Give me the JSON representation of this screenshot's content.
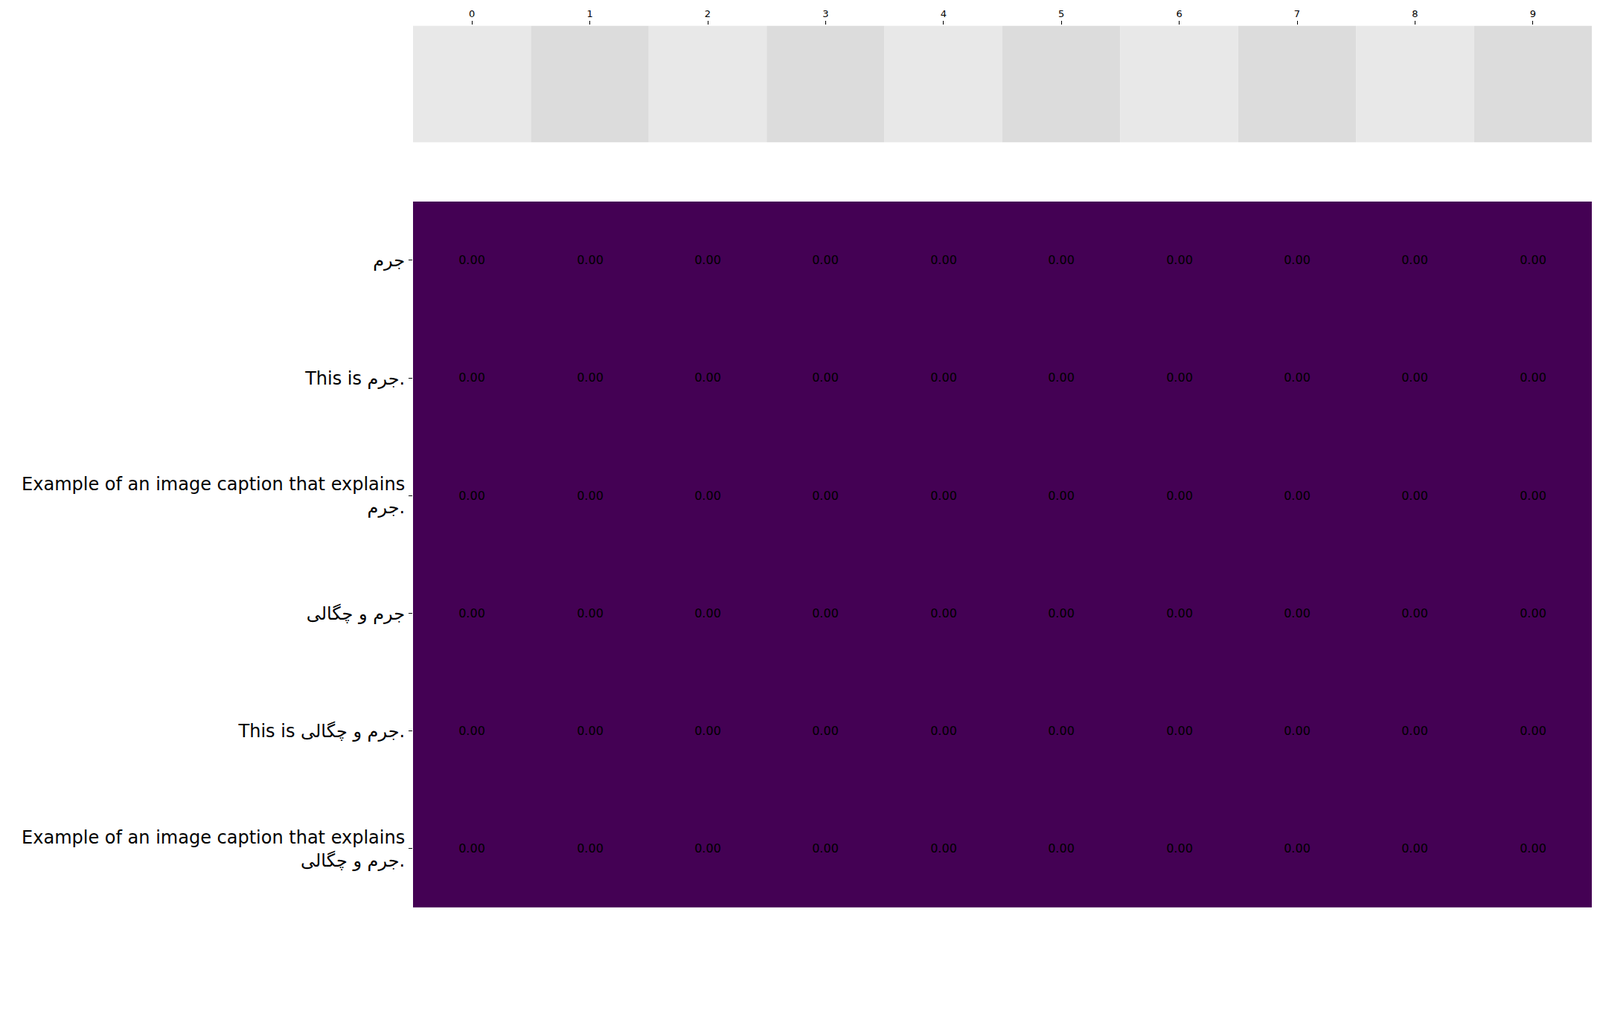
{
  "chart_data": {
    "type": "heatmap",
    "x": [
      0,
      1,
      2,
      3,
      4,
      5,
      6,
      7,
      8,
      9
    ],
    "xticks": [
      0,
      1,
      2,
      3,
      4,
      5,
      6,
      7,
      8,
      9
    ],
    "xlim": [
      -0.5,
      9.5
    ],
    "categories": [
      "جرم",
      "This is جرم.",
      "Example of an image caption that explains\nجرم.",
      "جرم و چگالی",
      "This is جرم و چگالی.",
      "Example of an image caption that explains\nجرم و چگالی."
    ],
    "cells": [
      [
        0,
        0,
        0,
        0,
        0,
        0,
        0,
        0,
        0,
        0
      ],
      [
        0,
        0,
        0,
        0,
        0,
        0,
        0,
        0,
        0,
        0
      ],
      [
        0,
        0,
        0,
        0,
        0,
        0,
        0,
        0,
        0,
        0
      ],
      [
        0,
        0,
        0,
        0,
        0,
        0,
        0,
        0,
        0,
        0
      ],
      [
        0,
        0,
        0,
        0,
        0,
        0,
        0,
        0,
        0,
        0
      ],
      [
        0,
        0,
        0,
        0,
        0,
        0,
        0,
        0,
        0,
        0
      ]
    ],
    "value_labels": [
      [
        "0.00",
        "0.00",
        "0.00",
        "0.00",
        "0.00",
        "0.00",
        "0.00",
        "0.00",
        "0.00",
        "0.00"
      ],
      [
        "0.00",
        "0.00",
        "0.00",
        "0.00",
        "0.00",
        "0.00",
        "0.00",
        "0.00",
        "0.00",
        "0.00"
      ],
      [
        "0.00",
        "0.00",
        "0.00",
        "0.00",
        "0.00",
        "0.00",
        "0.00",
        "0.00",
        "0.00",
        "0.00"
      ],
      [
        "0.00",
        "0.00",
        "0.00",
        "0.00",
        "0.00",
        "0.00",
        "0.00",
        "0.00",
        "0.00",
        "0.00"
      ],
      [
        "0.00",
        "0.00",
        "0.00",
        "0.00",
        "0.00",
        "0.00",
        "0.00",
        "0.00",
        "0.00",
        "0.00"
      ],
      [
        "0.00",
        "0.00",
        "0.00",
        "0.00",
        "0.00",
        "0.00",
        "0.00",
        "0.00",
        "0.00",
        "0.00"
      ]
    ],
    "data_labels": true,
    "color": "#440154"
  }
}
